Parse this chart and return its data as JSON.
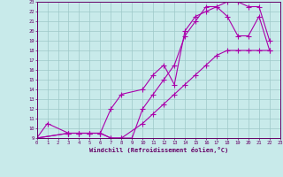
{
  "xlabel": "Windchill (Refroidissement éolien,°C)",
  "xlim": [
    0,
    23
  ],
  "ylim": [
    9,
    23
  ],
  "xticks": [
    0,
    1,
    2,
    3,
    4,
    5,
    6,
    7,
    8,
    9,
    10,
    11,
    12,
    13,
    14,
    15,
    16,
    17,
    18,
    19,
    20,
    21,
    22,
    23
  ],
  "yticks": [
    9,
    10,
    11,
    12,
    13,
    14,
    15,
    16,
    17,
    18,
    19,
    20,
    21,
    22,
    23
  ],
  "background_color": "#c8eaea",
  "line_color": "#aa00aa",
  "grid_color": "#9ec8c8",
  "line1_x": [
    0,
    1,
    3,
    4,
    5,
    6,
    7,
    8,
    9,
    10,
    11,
    12,
    13,
    14,
    15,
    16,
    17,
    18,
    19,
    20,
    21,
    22
  ],
  "line1_y": [
    9,
    10.5,
    9.5,
    9.5,
    9.5,
    9.5,
    9.0,
    9.0,
    9.0,
    12.0,
    13.5,
    15.0,
    16.5,
    19.5,
    21.0,
    22.5,
    22.5,
    23.0,
    23.0,
    22.5,
    22.5,
    19.0
  ],
  "line2_x": [
    0,
    3,
    4,
    5,
    6,
    7,
    8,
    10,
    11,
    12,
    13,
    14,
    15,
    16,
    17,
    18,
    19,
    20,
    21,
    22
  ],
  "line2_y": [
    9,
    9.5,
    9.5,
    9.5,
    9.5,
    12.0,
    13.5,
    14.0,
    15.5,
    16.5,
    14.5,
    20.0,
    21.5,
    22.0,
    22.5,
    21.5,
    19.5,
    19.5,
    21.5,
    18.0
  ],
  "line3_x": [
    0,
    3,
    4,
    5,
    6,
    7,
    8,
    10,
    11,
    12,
    13,
    14,
    15,
    16,
    17,
    18,
    19,
    20,
    21,
    22
  ],
  "line3_y": [
    9,
    9.5,
    9.5,
    9.5,
    9.5,
    9.0,
    9.0,
    10.5,
    11.5,
    12.5,
    13.5,
    14.5,
    15.5,
    16.5,
    17.5,
    18.0,
    18.0,
    18.0,
    18.0,
    18.0
  ]
}
